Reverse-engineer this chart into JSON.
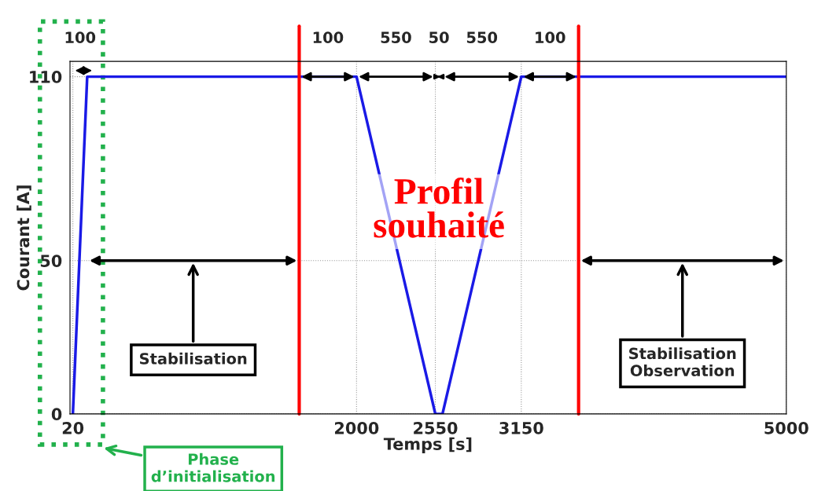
{
  "chart_data": {
    "type": "line",
    "xlabel": "Temps [s]",
    "ylabel": "Courant [A]",
    "series": [
      {
        "x": [
          20,
          120,
          2000,
          2550,
          2600,
          3150,
          5000
        ],
        "values": [
          0,
          110,
          110,
          0,
          0,
          110,
          110
        ],
        "color": "#1a1ae6"
      }
    ],
    "xlim": [
      0,
      5000
    ],
    "xticks": [
      20,
      2000,
      2550,
      3150,
      5000
    ],
    "ylim": [
      0,
      115
    ],
    "yticks": [
      0,
      50,
      110
    ],
    "grid": true,
    "ref_lines": [
      {
        "axis": "x",
        "value": 1600,
        "color": "#ff0000"
      },
      {
        "axis": "x",
        "value": 3550,
        "color": "#ff0000"
      }
    ],
    "annotations": [
      "100",
      "100",
      "550",
      "50",
      "550",
      "100",
      "Profil\nsouhaité",
      "Stabilisation",
      "Stabilisation\nObservation",
      "Phase\nd’initialisation"
    ]
  }
}
